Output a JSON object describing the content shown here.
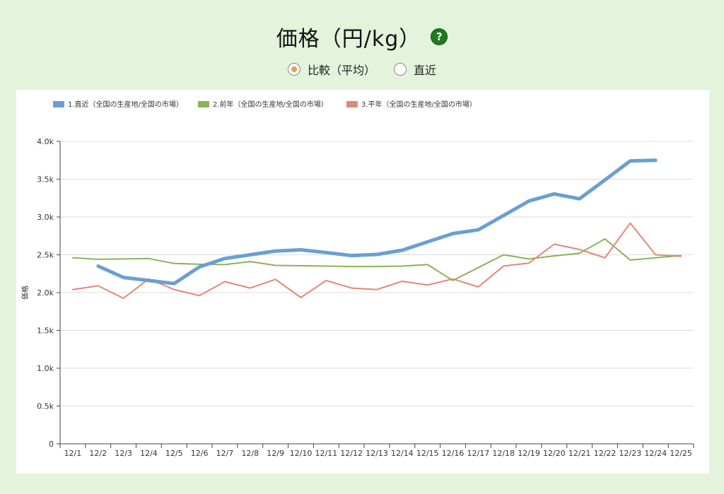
{
  "header": {
    "title": "価格（円/kg）",
    "help_icon": "question-icon"
  },
  "mode": {
    "options": [
      {
        "label": "比較（平均）",
        "selected": true
      },
      {
        "label": "直近",
        "selected": false
      }
    ],
    "selected_color": "#f0974b"
  },
  "chart_data": {
    "type": "line",
    "title": "価格（円/kg）",
    "ylabel": "価格",
    "xlabel": "",
    "categories": [
      "12/1",
      "12/2",
      "12/3",
      "12/4",
      "12/5",
      "12/6",
      "12/7",
      "12/8",
      "12/9",
      "12/10",
      "12/11",
      "12/12",
      "12/13",
      "12/14",
      "12/15",
      "12/16",
      "12/17",
      "12/18",
      "12/19",
      "12/20",
      "12/21",
      "12/22",
      "12/23",
      "12/24",
      "12/25"
    ],
    "ylim": [
      0,
      4000
    ],
    "yticks": [
      0,
      500,
      1000,
      1500,
      2000,
      2500,
      3000,
      3500,
      4000
    ],
    "ytick_labels": [
      "0",
      "0.5k",
      "1.0k",
      "1.5k",
      "2.0k",
      "2.5k",
      "3.0k",
      "3.5k",
      "4.0k"
    ],
    "grid": true,
    "legend_position": "top-left",
    "series": [
      {
        "name": "1.直近（全国の生産地/全国の市場）",
        "color": "#6a9fd0",
        "values": [
          null,
          2350,
          2200,
          2160,
          2120,
          2340,
          2450,
          2500,
          2550,
          2565,
          2530,
          2490,
          2505,
          2560,
          2670,
          2780,
          2830,
          3020,
          3210,
          3305,
          3240,
          3490,
          3740,
          3750,
          null
        ]
      },
      {
        "name": "2.前年（全国の生産地/全国の市場）",
        "color": "#8ab356",
        "values": [
          2460,
          2440,
          2445,
          2450,
          2385,
          2375,
          2370,
          2410,
          2360,
          2355,
          2350,
          2345,
          2345,
          2350,
          2370,
          2160,
          2330,
          2500,
          2445,
          2485,
          2520,
          2710,
          2430,
          2460,
          2490
        ]
      },
      {
        "name": "3.平年（全国の生産地/全国の市場）",
        "color": "#e08878",
        "values": [
          2040,
          2090,
          1925,
          2180,
          2040,
          1960,
          2145,
          2060,
          2175,
          1935,
          2160,
          2060,
          2040,
          2150,
          2100,
          2180,
          2075,
          2350,
          2390,
          2640,
          2570,
          2460,
          2920,
          2500,
          2480
        ]
      }
    ]
  }
}
